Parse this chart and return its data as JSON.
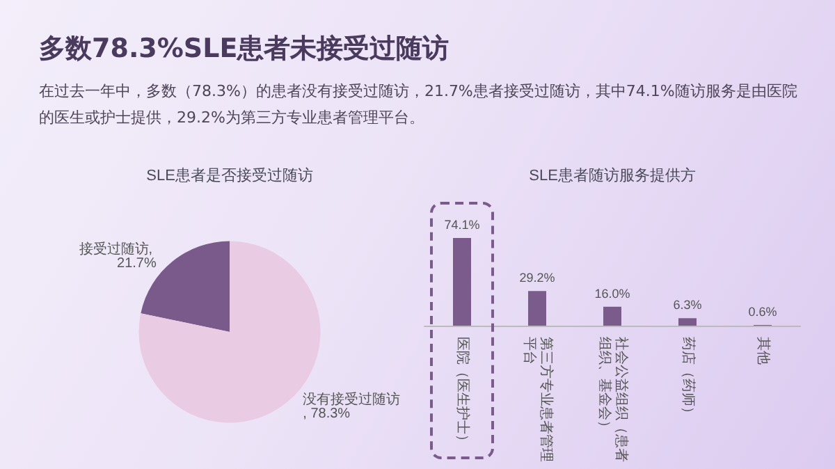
{
  "chart_data": [
    {
      "type": "pie",
      "title": "SLE患者是否接受过随访",
      "annotations": [
        "多数78.3%SLE患者未接受过随访",
        "在过去一年中，多数（78.3%）的患者没有接受过随访，21.7%患者接受过随访，其中74.1%随访服务是由医院的医生或护士提供，29.2%为第三方专业患者管理平台。"
      ],
      "categories": [
        "接受过随访",
        "没有接受过随访"
      ],
      "values": [
        21.7,
        78.3
      ],
      "colors": [
        "#7a5a8a",
        "#e9cbe3"
      ],
      "value_labels": [
        ", 21.7%",
        ", 78.3%"
      ],
      "legend": false
    },
    {
      "type": "bar",
      "title": "SLE患者随访服务提供方",
      "tick_labels": "x",
      "categories": [
        "医院（医生护士）",
        "第三方专业患者管理平台",
        "社会公益组织（患者组织、基金会）",
        "药店（药师）",
        "其他"
      ],
      "values": [
        74.1,
        29.2,
        16.0,
        6.3,
        0.6
      ],
      "color": "#7b5a8c",
      "value_labels": [
        "74.1%",
        "29.2%",
        "16.0%",
        "6.3%",
        "0.6%"
      ],
      "legend": false
    }
  ]
}
